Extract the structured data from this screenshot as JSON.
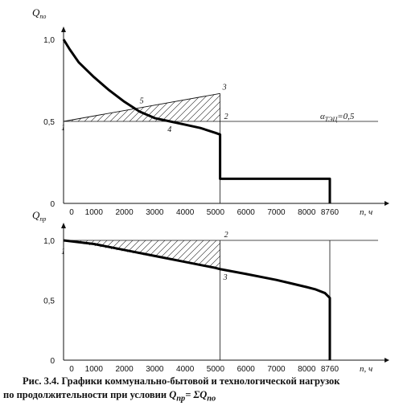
{
  "chart_data": [
    {
      "type": "line",
      "ylabel": "Q",
      "ylabel_sub": "по",
      "xlabel": "n, ч",
      "xlim": [
        0,
        8760
      ],
      "ylim": [
        0,
        1.0
      ],
      "x_ticks": [
        0,
        1000,
        2000,
        3000,
        4000,
        5000,
        6000,
        7000,
        8000,
        8760
      ],
      "y_ticks": [
        "0",
        "0,5",
        "1,0"
      ],
      "series": [
        {
          "x": [
            0,
            200,
            500,
            1000,
            1500,
            2000,
            2500,
            3000,
            3500,
            4000,
            4500,
            5000,
            5150,
            5150,
            8760,
            8760
          ],
          "y": [
            1.0,
            0.94,
            0.86,
            0.77,
            0.69,
            0.62,
            0.56,
            0.52,
            0.5,
            0.48,
            0.46,
            0.43,
            0.42,
            0.15,
            0.15,
            0
          ]
        }
      ],
      "annotations": {
        "alpha_label": "α",
        "alpha_sub": "ТЭЦ",
        "alpha_value": "=0,5",
        "alpha_y": 0.5,
        "triangle": [
          [
            0,
            0.5
          ],
          [
            5150,
            0.5
          ],
          [
            5150,
            0.67
          ]
        ],
        "points": [
          {
            "label": "1",
            "x": 0,
            "y": 0.5
          },
          {
            "label": "2",
            "x": 5150,
            "y": 0.5
          },
          {
            "label": "3",
            "x": 5150,
            "y": 0.67
          },
          {
            "label": "4",
            "x": 3500,
            "y": 0.5
          },
          {
            "label": "5",
            "x": 2400,
            "y": 0.58
          }
        ]
      }
    },
    {
      "type": "line",
      "ylabel": "Q",
      "ylabel_sub": "пр",
      "xlabel": "n, ч",
      "xlim": [
        0,
        8760
      ],
      "ylim": [
        0,
        1.0
      ],
      "x_ticks": [
        0,
        1000,
        2000,
        3000,
        4000,
        5000,
        6000,
        7000,
        8000,
        8760
      ],
      "y_ticks": [
        "0",
        "0,5",
        "1,0"
      ],
      "series": [
        {
          "x": [
            0,
            1000,
            2000,
            3000,
            4000,
            5000,
            5150,
            6000,
            7000,
            7500,
            8000,
            8300,
            8600,
            8760,
            8760
          ],
          "y": [
            1.0,
            0.97,
            0.92,
            0.87,
            0.82,
            0.77,
            0.76,
            0.72,
            0.67,
            0.64,
            0.61,
            0.59,
            0.56,
            0.52,
            0
          ]
        }
      ],
      "annotations": {
        "ref_line_y": 1.0,
        "triangle": [
          [
            0,
            1.0
          ],
          [
            5150,
            1.0
          ],
          [
            5150,
            0.76
          ]
        ],
        "points": [
          {
            "label": "1",
            "x": 0,
            "y": 1.0
          },
          {
            "label": "2",
            "x": 5150,
            "y": 1.0
          },
          {
            "label": "3",
            "x": 5150,
            "y": 0.76
          }
        ]
      }
    }
  ],
  "caption": {
    "line1": "Рис. 3.4. Графики коммунально-бытовой и технологической нагрузок",
    "line2_start": "по продолжительности при условии ",
    "cond_q1": "Q",
    "cond_q1_sub": "пр",
    "cond_eq": "= ΣQ",
    "cond_q2_sub": "по"
  }
}
